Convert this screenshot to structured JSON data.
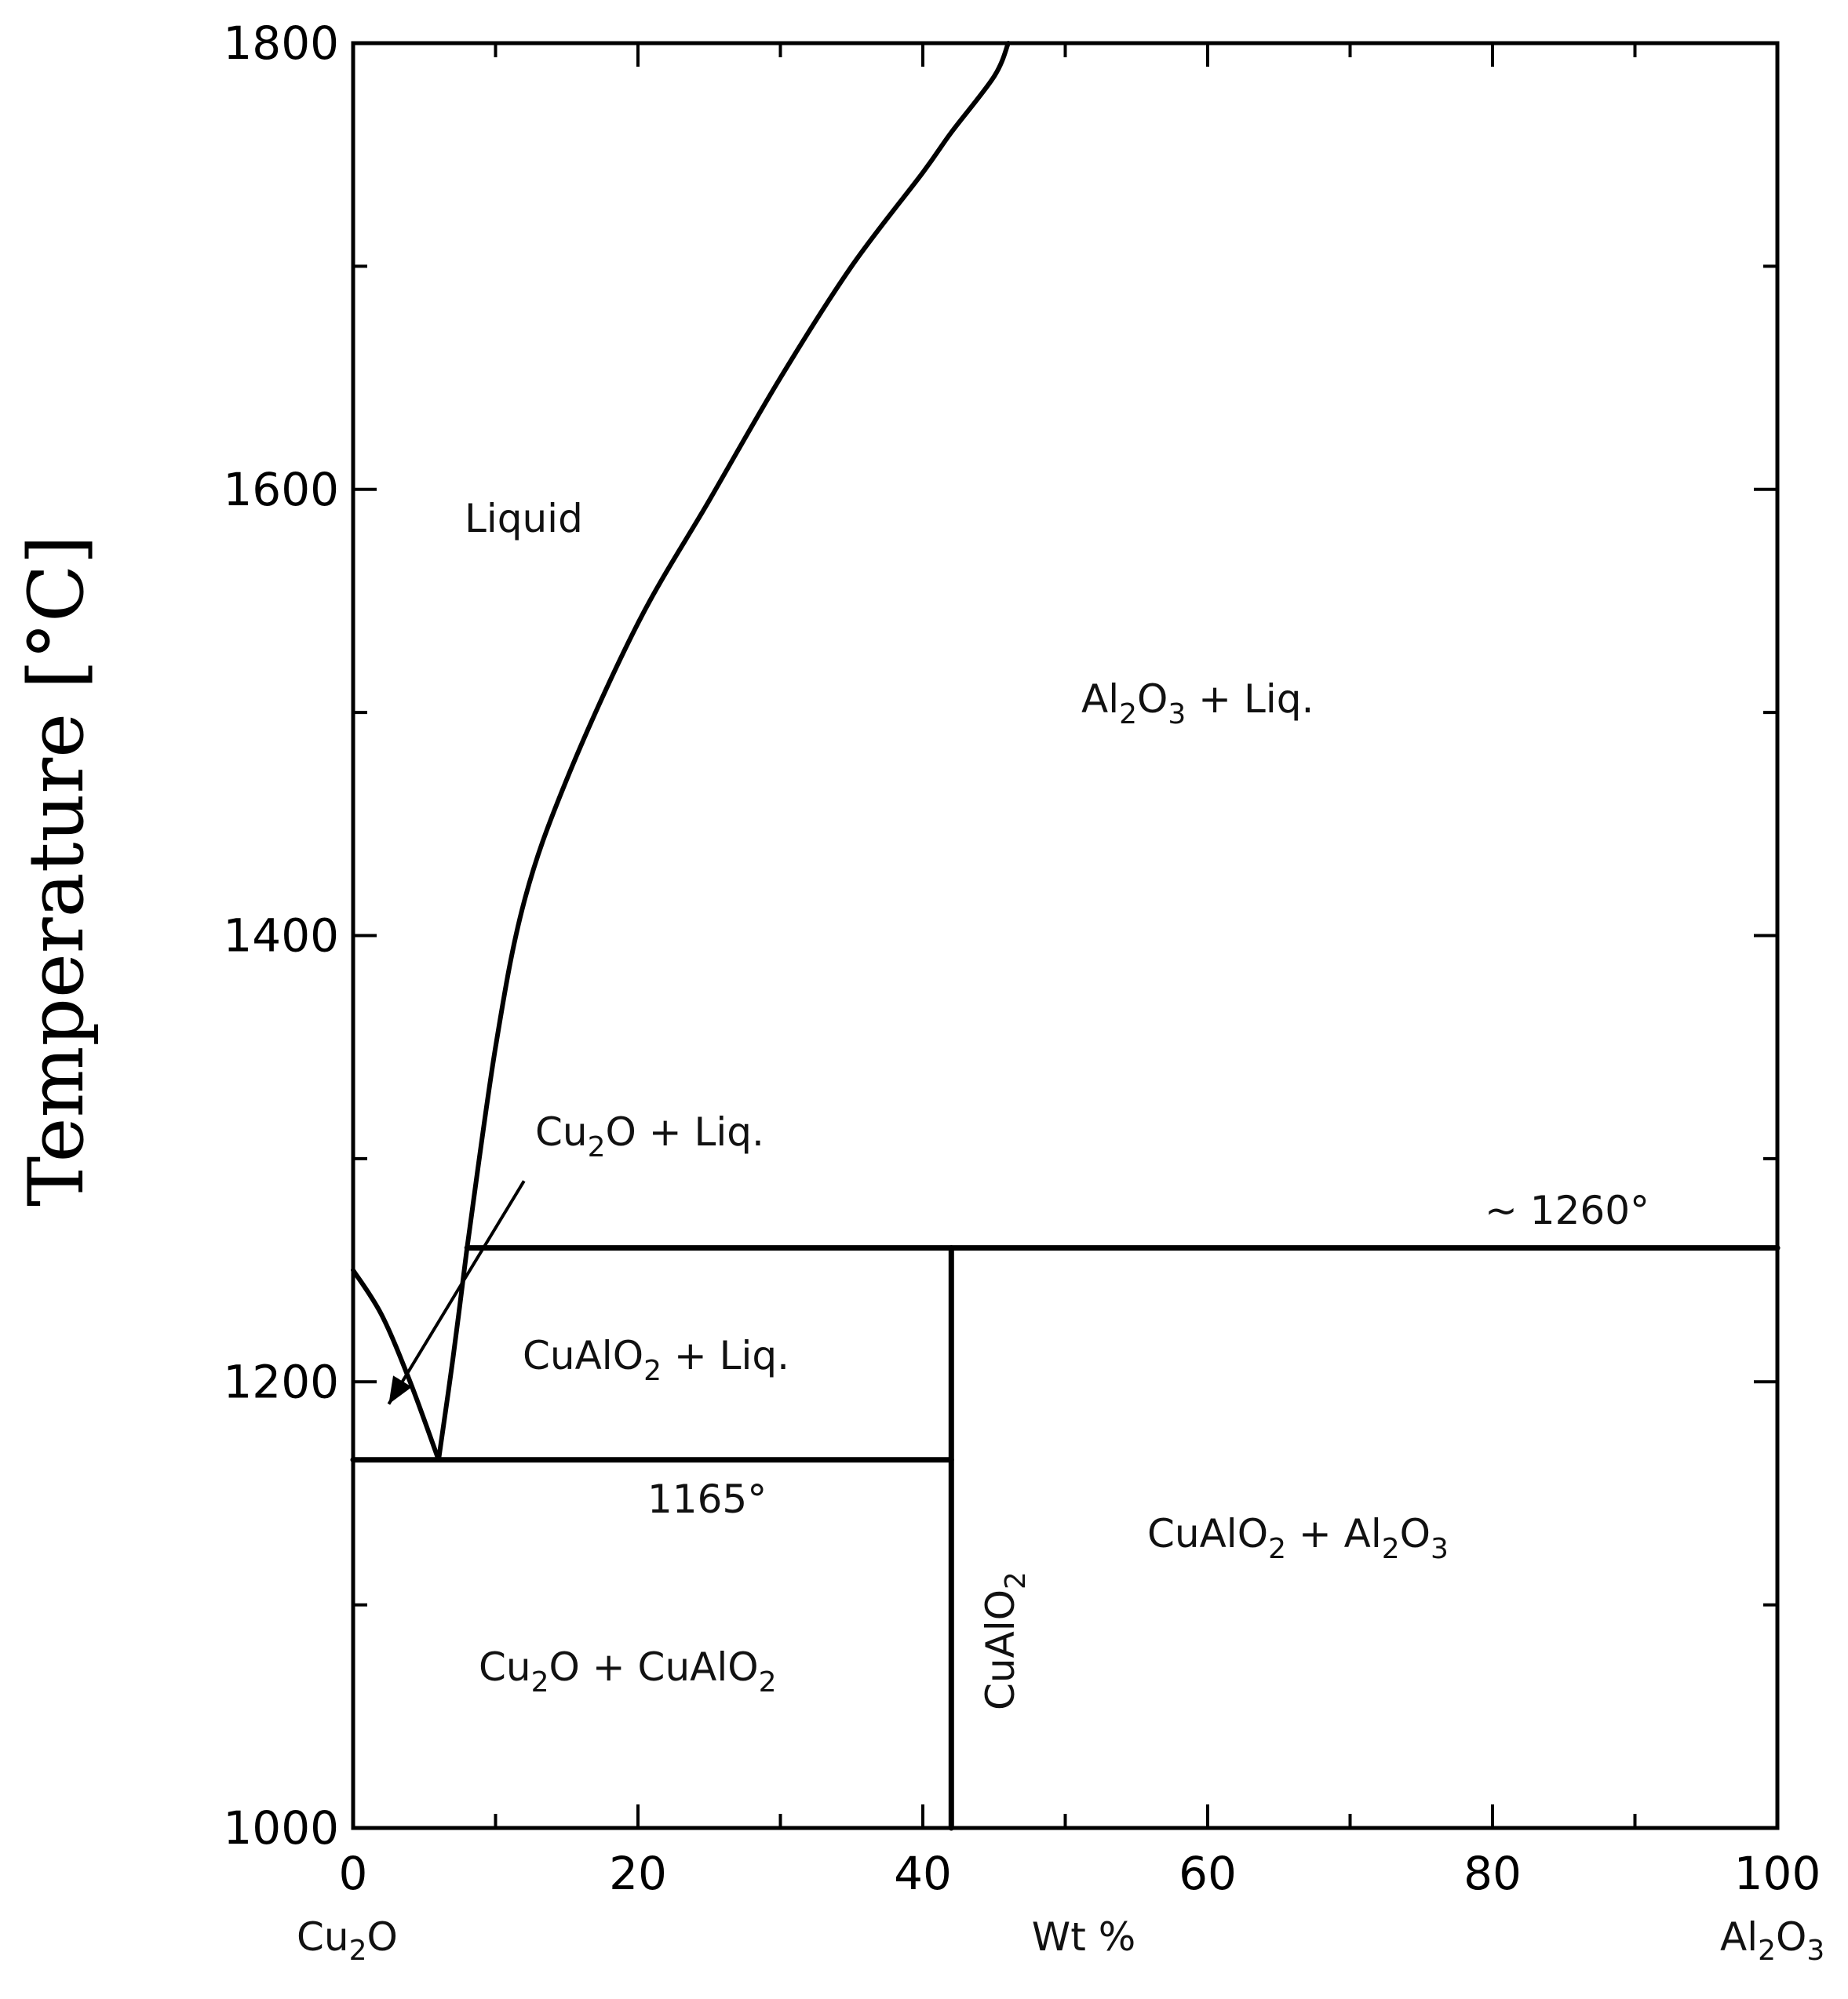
{
  "chart_data": {
    "type": "line",
    "title": "",
    "xlabel": "Wt %",
    "ylabel": "Temperature [°C]",
    "xlim": [
      0,
      100
    ],
    "ylim": [
      1000,
      1800
    ],
    "x_ticks": [
      "0",
      "20",
      "40",
      "60",
      "80",
      "100"
    ],
    "y_ticks": [
      "1000",
      "1200",
      "1400",
      "1600",
      "1800"
    ],
    "x_end_labels": {
      "left": {
        "base": "Cu",
        "sub": "2",
        "rest": "O"
      },
      "right": {
        "base": "Al",
        "sub": "2",
        "rest": "O",
        "sub2": "3"
      }
    },
    "grid": false,
    "series": [
      {
        "values": [
          [
            0,
            1250
          ],
          [
            2,
            1230
          ],
          [
            4,
            1200
          ],
          [
            6,
            1165
          ]
        ]
      },
      {
        "values": [
          [
            6,
            1165
          ],
          [
            7,
            1210
          ],
          [
            8,
            1260
          ]
        ]
      },
      {
        "values": [
          [
            8,
            1260
          ],
          [
            10,
            1350
          ],
          [
            12,
            1415
          ],
          [
            15,
            1470
          ],
          [
            20,
            1540
          ],
          [
            25,
            1595
          ],
          [
            30,
            1650
          ],
          [
            35,
            1700
          ],
          [
            40,
            1742
          ],
          [
            42,
            1760
          ],
          [
            45,
            1785
          ],
          [
            46,
            1800
          ]
        ]
      },
      {
        "values": [
          [
            0,
            1165
          ],
          [
            42,
            1165
          ]
        ]
      },
      {
        "values": [
          [
            8,
            1260
          ],
          [
            100,
            1260
          ]
        ]
      },
      {
        "values": [
          [
            42,
            1000
          ],
          [
            42,
            1260
          ]
        ]
      }
    ],
    "annotations": {
      "liquid": "Liquid",
      "al2o3_liq": {
        "parts": [
          "Al",
          "2",
          "O",
          "3",
          " + Liq."
        ]
      },
      "cu2o_liq": {
        "parts": [
          "Cu",
          "2",
          "O + Liq."
        ]
      },
      "temp_1260": "~ 1260°",
      "cualo2_liq": {
        "parts": [
          "CuAlO",
          "2",
          " + Liq."
        ]
      },
      "temp_1165": "1165°",
      "cualo2_al2o3": {
        "parts": [
          "CuAlO",
          "2",
          " + Al",
          "2",
          "O",
          "3"
        ]
      },
      "cu2o_cualo2": {
        "parts": [
          "Cu",
          "2",
          "O + CuAlO",
          "2"
        ]
      },
      "cualo2_vertical": {
        "parts": [
          "CuAlO",
          "2"
        ]
      }
    },
    "pointer": {
      "from": [
        12,
        1290
      ],
      "to": [
        2.5,
        1190
      ]
    }
  }
}
